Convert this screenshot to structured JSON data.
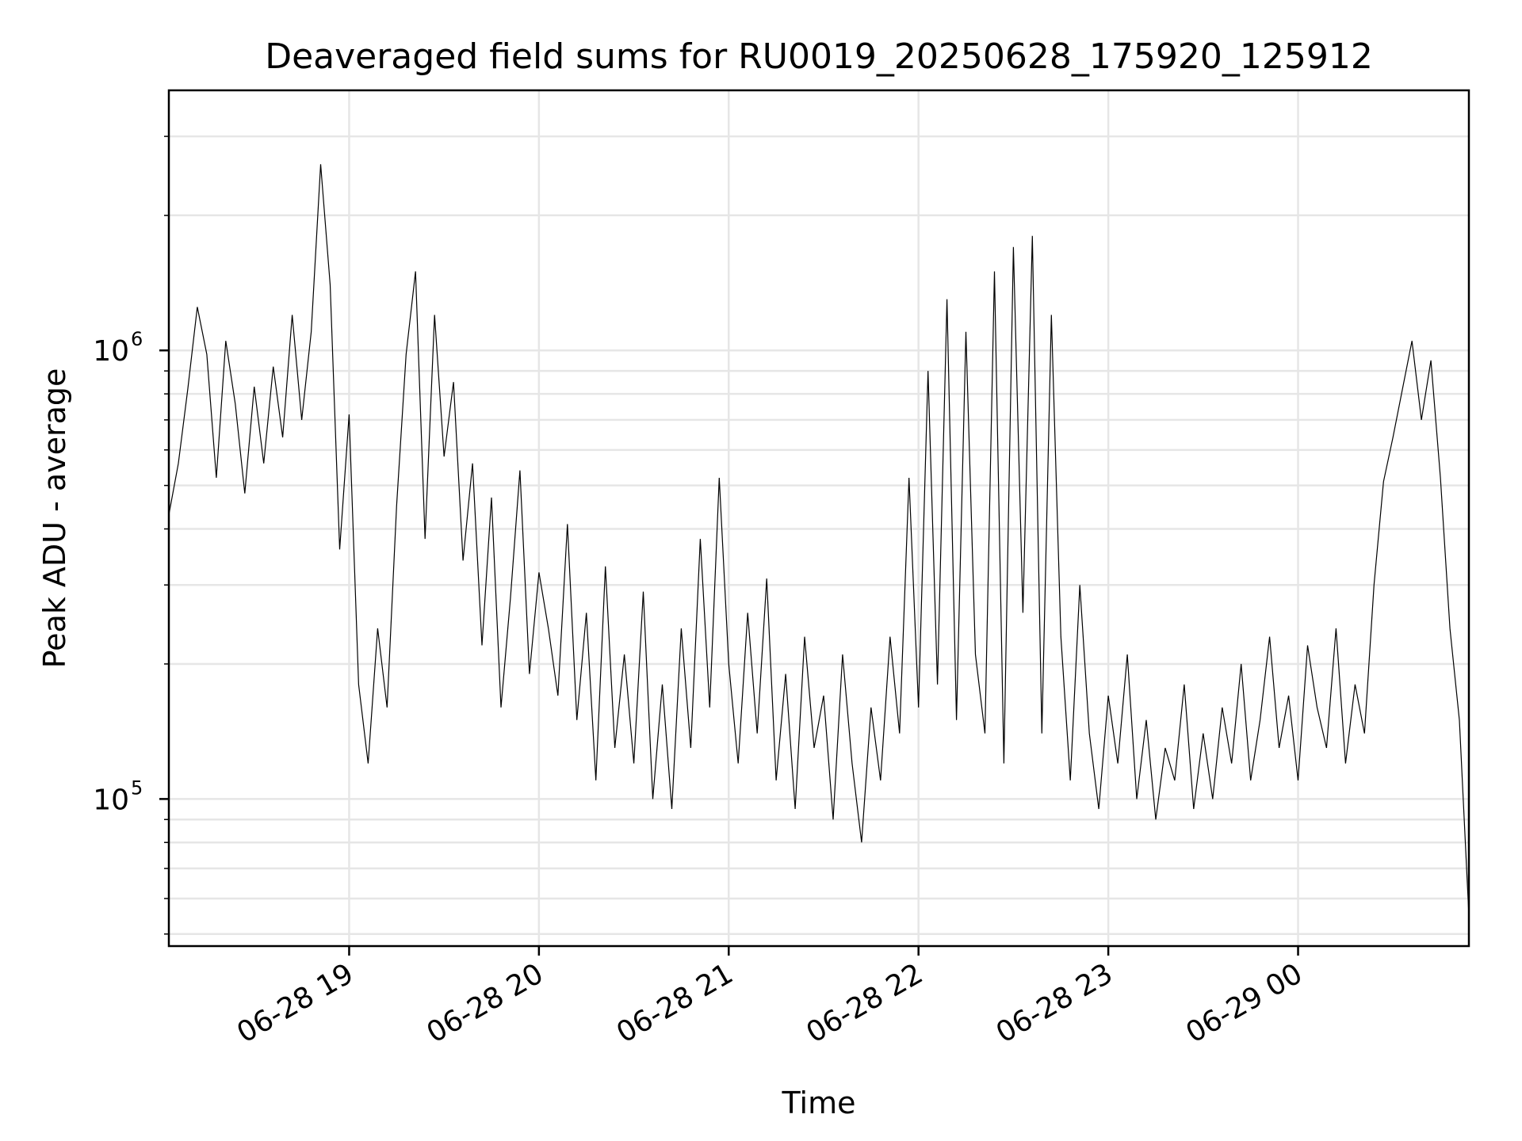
{
  "chart_data": {
    "type": "line",
    "title": "Deaveraged field sums for RU0019_20250628_175920_125912",
    "xlabel": "Time",
    "ylabel": "Peak ADU - average",
    "y_scale": "log",
    "ylim": [
      47000,
      3800000
    ],
    "xlim": [
      "2025-06-28 18:03",
      "2025-06-29 00:54"
    ],
    "grid": true,
    "x_ticks": [
      {
        "value": "2025-06-28 19:00",
        "label": "06-28 19"
      },
      {
        "value": "2025-06-28 20:00",
        "label": "06-28 20"
      },
      {
        "value": "2025-06-28 21:00",
        "label": "06-28 21"
      },
      {
        "value": "2025-06-28 22:00",
        "label": "06-28 22"
      },
      {
        "value": "2025-06-28 23:00",
        "label": "06-28 23"
      },
      {
        "value": "2025-06-29 00:00",
        "label": "06-29 00"
      }
    ],
    "y_ticks": [
      {
        "value": 100000,
        "base": "10",
        "exp": "5"
      },
      {
        "value": 1000000,
        "base": "10",
        "exp": "6"
      }
    ],
    "series": [
      {
        "points": [
          [
            "2025-06-28 18:03",
            430000
          ],
          [
            "2025-06-28 18:06",
            560000
          ],
          [
            "2025-06-28 18:09",
            820000
          ],
          [
            "2025-06-28 18:12",
            1250000
          ],
          [
            "2025-06-28 18:15",
            980000
          ],
          [
            "2025-06-28 18:18",
            520000
          ],
          [
            "2025-06-28 18:21",
            1050000
          ],
          [
            "2025-06-28 18:24",
            760000
          ],
          [
            "2025-06-28 18:27",
            480000
          ],
          [
            "2025-06-28 18:30",
            830000
          ],
          [
            "2025-06-28 18:33",
            560000
          ],
          [
            "2025-06-28 18:36",
            920000
          ],
          [
            "2025-06-28 18:39",
            640000
          ],
          [
            "2025-06-28 18:42",
            1200000
          ],
          [
            "2025-06-28 18:45",
            700000
          ],
          [
            "2025-06-28 18:48",
            1100000
          ],
          [
            "2025-06-28 18:51",
            2600000
          ],
          [
            "2025-06-28 18:54",
            1400000
          ],
          [
            "2025-06-28 18:57",
            360000
          ],
          [
            "2025-06-28 19:00",
            720000
          ],
          [
            "2025-06-28 19:03",
            180000
          ],
          [
            "2025-06-28 19:06",
            120000
          ],
          [
            "2025-06-28 19:09",
            240000
          ],
          [
            "2025-06-28 19:12",
            160000
          ],
          [
            "2025-06-28 19:15",
            450000
          ],
          [
            "2025-06-28 19:18",
            980000
          ],
          [
            "2025-06-28 19:21",
            1500000
          ],
          [
            "2025-06-28 19:24",
            380000
          ],
          [
            "2025-06-28 19:27",
            1200000
          ],
          [
            "2025-06-28 19:30",
            580000
          ],
          [
            "2025-06-28 19:33",
            850000
          ],
          [
            "2025-06-28 19:36",
            340000
          ],
          [
            "2025-06-28 19:39",
            560000
          ],
          [
            "2025-06-28 19:42",
            220000
          ],
          [
            "2025-06-28 19:45",
            470000
          ],
          [
            "2025-06-28 19:48",
            160000
          ],
          [
            "2025-06-28 19:51",
            280000
          ],
          [
            "2025-06-28 19:54",
            540000
          ],
          [
            "2025-06-28 19:57",
            190000
          ],
          [
            "2025-06-28 20:00",
            320000
          ],
          [
            "2025-06-28 20:03",
            240000
          ],
          [
            "2025-06-28 20:06",
            170000
          ],
          [
            "2025-06-28 20:09",
            410000
          ],
          [
            "2025-06-28 20:12",
            150000
          ],
          [
            "2025-06-28 20:15",
            260000
          ],
          [
            "2025-06-28 20:18",
            110000
          ],
          [
            "2025-06-28 20:21",
            330000
          ],
          [
            "2025-06-28 20:24",
            130000
          ],
          [
            "2025-06-28 20:27",
            210000
          ],
          [
            "2025-06-28 20:30",
            120000
          ],
          [
            "2025-06-28 20:33",
            290000
          ],
          [
            "2025-06-28 20:36",
            100000
          ],
          [
            "2025-06-28 20:39",
            180000
          ],
          [
            "2025-06-28 20:42",
            95000
          ],
          [
            "2025-06-28 20:45",
            240000
          ],
          [
            "2025-06-28 20:48",
            130000
          ],
          [
            "2025-06-28 20:51",
            380000
          ],
          [
            "2025-06-28 20:54",
            160000
          ],
          [
            "2025-06-28 20:57",
            520000
          ],
          [
            "2025-06-28 21:00",
            200000
          ],
          [
            "2025-06-28 21:03",
            120000
          ],
          [
            "2025-06-28 21:06",
            260000
          ],
          [
            "2025-06-28 21:09",
            140000
          ],
          [
            "2025-06-28 21:12",
            310000
          ],
          [
            "2025-06-28 21:15",
            110000
          ],
          [
            "2025-06-28 21:18",
            190000
          ],
          [
            "2025-06-28 21:21",
            95000
          ],
          [
            "2025-06-28 21:24",
            230000
          ],
          [
            "2025-06-28 21:27",
            130000
          ],
          [
            "2025-06-28 21:30",
            170000
          ],
          [
            "2025-06-28 21:33",
            90000
          ],
          [
            "2025-06-28 21:36",
            210000
          ],
          [
            "2025-06-28 21:39",
            120000
          ],
          [
            "2025-06-28 21:42",
            80000
          ],
          [
            "2025-06-28 21:45",
            160000
          ],
          [
            "2025-06-28 21:48",
            110000
          ],
          [
            "2025-06-28 21:51",
            230000
          ],
          [
            "2025-06-28 21:54",
            140000
          ],
          [
            "2025-06-28 21:57",
            520000
          ],
          [
            "2025-06-28 22:00",
            160000
          ],
          [
            "2025-06-28 22:03",
            900000
          ],
          [
            "2025-06-28 22:06",
            180000
          ],
          [
            "2025-06-28 22:09",
            1300000
          ],
          [
            "2025-06-28 22:12",
            150000
          ],
          [
            "2025-06-28 22:15",
            1100000
          ],
          [
            "2025-06-28 22:18",
            210000
          ],
          [
            "2025-06-28 22:21",
            140000
          ],
          [
            "2025-06-28 22:24",
            1500000
          ],
          [
            "2025-06-28 22:27",
            120000
          ],
          [
            "2025-06-28 22:30",
            1700000
          ],
          [
            "2025-06-28 22:33",
            260000
          ],
          [
            "2025-06-28 22:36",
            1800000
          ],
          [
            "2025-06-28 22:39",
            140000
          ],
          [
            "2025-06-28 22:42",
            1200000
          ],
          [
            "2025-06-28 22:45",
            230000
          ],
          [
            "2025-06-28 22:48",
            110000
          ],
          [
            "2025-06-28 22:51",
            300000
          ],
          [
            "2025-06-28 22:54",
            140000
          ],
          [
            "2025-06-28 22:57",
            95000
          ],
          [
            "2025-06-28 23:00",
            170000
          ],
          [
            "2025-06-28 23:03",
            120000
          ],
          [
            "2025-06-28 23:06",
            210000
          ],
          [
            "2025-06-28 23:09",
            100000
          ],
          [
            "2025-06-28 23:12",
            150000
          ],
          [
            "2025-06-28 23:15",
            90000
          ],
          [
            "2025-06-28 23:18",
            130000
          ],
          [
            "2025-06-28 23:21",
            110000
          ],
          [
            "2025-06-28 23:24",
            180000
          ],
          [
            "2025-06-28 23:27",
            95000
          ],
          [
            "2025-06-28 23:30",
            140000
          ],
          [
            "2025-06-28 23:33",
            100000
          ],
          [
            "2025-06-28 23:36",
            160000
          ],
          [
            "2025-06-28 23:39",
            120000
          ],
          [
            "2025-06-28 23:42",
            200000
          ],
          [
            "2025-06-28 23:45",
            110000
          ],
          [
            "2025-06-28 23:48",
            150000
          ],
          [
            "2025-06-28 23:51",
            230000
          ],
          [
            "2025-06-28 23:54",
            130000
          ],
          [
            "2025-06-28 23:57",
            170000
          ],
          [
            "2025-06-29 00:00",
            110000
          ],
          [
            "2025-06-29 00:03",
            220000
          ],
          [
            "2025-06-29 00:06",
            160000
          ],
          [
            "2025-06-29 00:09",
            130000
          ],
          [
            "2025-06-29 00:12",
            240000
          ],
          [
            "2025-06-29 00:15",
            120000
          ],
          [
            "2025-06-29 00:18",
            180000
          ],
          [
            "2025-06-29 00:21",
            140000
          ],
          [
            "2025-06-29 00:24",
            300000
          ],
          [
            "2025-06-29 00:27",
            510000
          ],
          [
            "2025-06-29 00:30",
            640000
          ],
          [
            "2025-06-29 00:33",
            820000
          ],
          [
            "2025-06-29 00:36",
            1050000
          ],
          [
            "2025-06-29 00:39",
            700000
          ],
          [
            "2025-06-29 00:42",
            950000
          ],
          [
            "2025-06-29 00:45",
            520000
          ],
          [
            "2025-06-29 00:48",
            240000
          ],
          [
            "2025-06-29 00:51",
            150000
          ],
          [
            "2025-06-29 00:54",
            55000
          ]
        ]
      }
    ]
  }
}
